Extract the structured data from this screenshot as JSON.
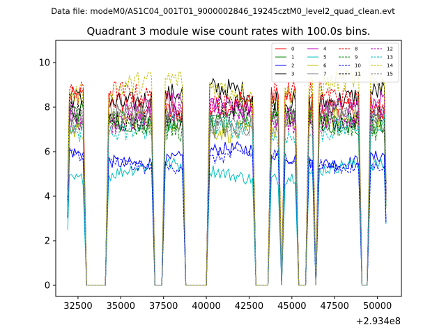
{
  "chart_data": {
    "type": "line",
    "suptitle": "Data file: modeM0/AS1C04_001T01_9000002846_19245cztM0_level2_quad_clean.evt",
    "title": "Quadrant 3 module wise count rates with 100.0s bins.",
    "xlabel": "",
    "ylabel": "",
    "x_offset_label": "+2.934e8",
    "xlim": [
      31200,
      51400
    ],
    "ylim": [
      -0.5,
      11.0
    ],
    "x_ticks": [
      32500,
      35000,
      37500,
      40000,
      42500,
      45000,
      47500,
      50000
    ],
    "x_tick_labels": [
      "32500",
      "35000",
      "37500",
      "40000",
      "42500",
      "45000",
      "47500",
      "50000"
    ],
    "y_ticks": [
      0,
      2,
      4,
      6,
      8,
      10
    ],
    "y_tick_labels": [
      "0",
      "2",
      "4",
      "6",
      "8",
      "10"
    ],
    "bin_seconds": 100,
    "time_range": [
      31900,
      50500
    ],
    "good_intervals": [
      [
        31900,
        32900
      ],
      [
        34200,
        36900
      ],
      [
        37500,
        38700
      ],
      [
        40100,
        42800
      ],
      [
        43700,
        44300
      ],
      [
        44500,
        45300
      ],
      [
        45900,
        46300
      ],
      [
        46500,
        49000
      ],
      [
        49500,
        50500
      ]
    ],
    "legend": {
      "location": "upper right",
      "columns": 4,
      "entries": [
        "0",
        "1",
        "2",
        "3",
        "4",
        "5",
        "6",
        "7",
        "8",
        "9",
        "10",
        "11",
        "12",
        "13",
        "14",
        "15"
      ]
    },
    "series": [
      {
        "name": "0",
        "color": "#ff0000",
        "dash": "solid",
        "mean": 8.1
      },
      {
        "name": "1",
        "color": "#008000",
        "dash": "solid",
        "mean": 7.5
      },
      {
        "name": "2",
        "color": "#0000ff",
        "dash": "solid",
        "mean": 5.8
      },
      {
        "name": "3",
        "color": "#000000",
        "dash": "solid",
        "mean": 8.5
      },
      {
        "name": "4",
        "color": "#bf00bf",
        "dash": "solid",
        "mean": 7.9
      },
      {
        "name": "5",
        "color": "#00bfbf",
        "dash": "solid",
        "mean": 5.1
      },
      {
        "name": "6",
        "color": "#bfbf00",
        "dash": "solid",
        "mean": 7.2
      },
      {
        "name": "7",
        "color": "#808080",
        "dash": "solid",
        "mean": 7.4
      },
      {
        "name": "8",
        "color": "#ff0000",
        "dash": "dashed",
        "mean": 8.4
      },
      {
        "name": "9",
        "color": "#008000",
        "dash": "dashed",
        "mean": 7.3
      },
      {
        "name": "10",
        "color": "#0000ff",
        "dash": "dashed",
        "mean": 5.6
      },
      {
        "name": "11",
        "color": "#000000",
        "dash": "dashed",
        "mean": 7.7
      },
      {
        "name": "12",
        "color": "#bf00bf",
        "dash": "dashed",
        "mean": 7.6
      },
      {
        "name": "13",
        "color": "#00bfbf",
        "dash": "dashed",
        "mean": 7.0
      },
      {
        "name": "14",
        "color": "#bfbf00",
        "dash": "dashed",
        "mean": 8.9
      },
      {
        "name": "15",
        "color": "#808080",
        "dash": "dashed",
        "mean": 7.5
      }
    ]
  }
}
